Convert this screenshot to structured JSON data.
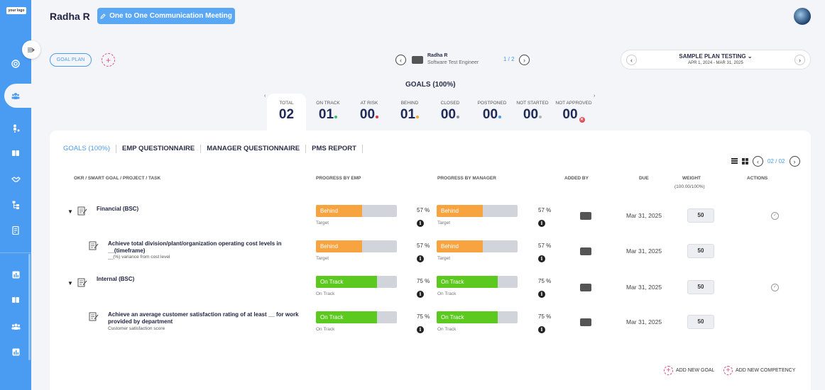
{
  "logo_text": "your logo",
  "header": {
    "user_name": "Radha R",
    "meeting_button": "One to One Communication Meeting"
  },
  "goal_plan_label": "GOAL PLAN",
  "employee": {
    "name": "Radha R",
    "role": "Software Test Engineer",
    "page": "1 / 2"
  },
  "plan": {
    "title": "SAMPLE PLAN TESTING",
    "dates": "APR 1, 2024 - MAR 31, 2025"
  },
  "goals_title": "GOALS (100%)",
  "stats": [
    {
      "label": "TOTAL",
      "value": "02",
      "dot": ""
    },
    {
      "label": "ON TRACK",
      "value": "01",
      "dot": "#2ec46b"
    },
    {
      "label": "AT RISK",
      "value": "00",
      "dot": "#e0323a"
    },
    {
      "label": "BEHIND",
      "value": "01",
      "dot": "#f5a623"
    },
    {
      "label": "CLOSED",
      "value": "00",
      "dot": "#8a8fa0"
    },
    {
      "label": "POSTPONED",
      "value": "00",
      "dot": "#4a9cf2"
    },
    {
      "label": "NOT STARTED",
      "value": "00",
      "dot": "#b0b3bd"
    },
    {
      "label": "NOT APPROVED",
      "value": "00",
      "dot": ""
    }
  ],
  "tabs": [
    "GOALS (100%)",
    "EMP QUESTIONNAIRE",
    "MANAGER QUESTIONNAIRE",
    "PMS REPORT"
  ],
  "pager": {
    "current": "02",
    "sep": "/",
    "total": "02"
  },
  "columns": {
    "task": "OKR / SMART GOAL / PROJECT / TASK",
    "progress_emp": "PROGRESS BY EMP",
    "progress_mgr": "PROGRESS BY MANAGER",
    "added_by": "ADDED BY",
    "due": "DUE",
    "weight": "WEIGHT",
    "weight_sub": "(100.00/100%)",
    "actions": "ACTIONS"
  },
  "rows": [
    {
      "title": "Financial (BSC)",
      "subtitle": "",
      "parent": true,
      "emp_status": "Behind",
      "emp_caption": "Target",
      "emp_pct": "57 %",
      "emp_value": 0.57,
      "mgr_status": "Behind",
      "mgr_caption": "Target",
      "mgr_pct": "57 %",
      "mgr_value": 0.57,
      "due": "Mar 31, 2025",
      "weight": "50"
    },
    {
      "title": "Achieve total division/plant/organization operating cost levels in __(timeframe)",
      "subtitle": "__(%) variance from cost level",
      "parent": false,
      "emp_status": "Behind",
      "emp_caption": "Target",
      "emp_pct": "57 %",
      "emp_value": 0.57,
      "mgr_status": "Behind",
      "mgr_caption": "Target",
      "mgr_pct": "57 %",
      "mgr_value": 0.57,
      "due": "Mar 31, 2025",
      "weight": "50"
    },
    {
      "title": "Internal (BSC)",
      "subtitle": "",
      "parent": true,
      "emp_status": "On Track",
      "emp_caption": "On Track",
      "emp_pct": "75 %",
      "emp_value": 0.75,
      "mgr_status": "On Track",
      "mgr_caption": "On Track",
      "mgr_pct": "75 %",
      "mgr_value": 0.75,
      "due": "Mar 31, 2025",
      "weight": "50"
    },
    {
      "title": "Achieve an average customer satisfaction rating of at least __ for work provided by department",
      "subtitle": "Customer satisfaction score",
      "parent": false,
      "emp_status": "On Track",
      "emp_caption": "On Track",
      "emp_pct": "75 %",
      "emp_value": 0.75,
      "mgr_status": "On Track",
      "mgr_caption": "On Track",
      "mgr_pct": "75 %",
      "mgr_value": 0.75,
      "due": "Mar 31, 2025",
      "weight": "50"
    }
  ],
  "status_colors": {
    "Behind": "#f7a440",
    "On Track": "#5cc91f"
  },
  "footer": {
    "add_goal": "ADD NEW GOAL",
    "add_competency": "ADD NEW COMPETENCY"
  }
}
